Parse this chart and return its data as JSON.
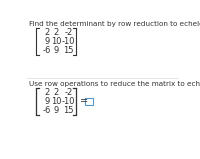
{
  "title1": "Find the determinant by row reduction to echelon form.",
  "title2": "Use row operations to reduce the matrix to echelon form.",
  "matrix1": [
    [
      "2",
      "2",
      "-2"
    ],
    [
      "9",
      "10",
      "-10"
    ],
    [
      "-6",
      "9",
      "15"
    ]
  ],
  "matrix2": [
    [
      "2",
      "2",
      "-2"
    ],
    [
      "9",
      "10",
      "-10"
    ],
    [
      "-6",
      "9",
      "15"
    ]
  ],
  "bg_color": "#ffffff",
  "text_color": "#333333",
  "title_fontsize": 5.2,
  "matrix_fontsize": 6.0,
  "divider_color": "#dddddd",
  "box_color": "#5599cc"
}
